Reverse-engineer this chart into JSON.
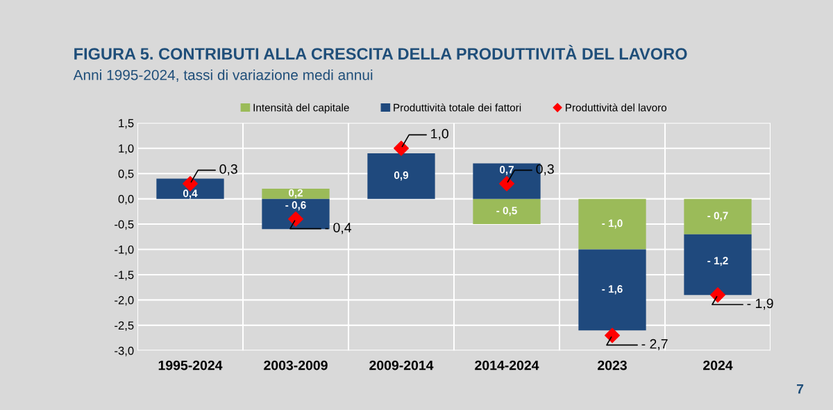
{
  "chart_data": {
    "type": "bar",
    "stacked": true,
    "title": "FIGURA 5. CONTRIBUTI ALLA CRESCITA DELLA PRODUTTIVITÀ DEL LAVORO",
    "subtitle": "Anni 1995-2024, tassi di variazione medi annui",
    "categories": [
      "1995-2024",
      "2003-2009",
      "2009-2014",
      "2014-2024",
      "2023",
      "2024"
    ],
    "series": [
      {
        "name": "Intensità del capitale",
        "color": "#9bbb59",
        "values": [
          null,
          0.2,
          null,
          -0.5,
          -1.0,
          -0.7
        ],
        "value_labels": [
          null,
          "0,2",
          null,
          "- 0,5",
          "- 1,0",
          "- 0,7"
        ]
      },
      {
        "name": "Produttività totale dei fattori",
        "color": "#1f497d",
        "values": [
          0.4,
          -0.6,
          0.9,
          0.7,
          -1.6,
          -1.2
        ],
        "value_labels": [
          "0,4",
          "- 0,6",
          "0,9",
          "0,7",
          "- 1,6",
          "- 1,2"
        ]
      },
      {
        "name": "Produttività del lavoro",
        "type": "scatter",
        "marker": "diamond",
        "color": "#ff0000",
        "values": [
          0.3,
          -0.4,
          1.0,
          0.3,
          -2.7,
          -1.9
        ],
        "value_labels": [
          "0,3",
          "- 0,4",
          "1,0",
          "0,3",
          "- 2,7",
          "- 1,9"
        ]
      }
    ],
    "ylim": [
      -3.0,
      1.5
    ],
    "yticks": [
      {
        "value": -3.0,
        "label": "-3,0"
      },
      {
        "value": -2.5,
        "label": "-2,5"
      },
      {
        "value": -2.0,
        "label": "-2,0"
      },
      {
        "value": -1.5,
        "label": "-1,5"
      },
      {
        "value": -1.0,
        "label": "-1,0"
      },
      {
        "value": -0.5,
        "label": "-0,5"
      },
      {
        "value": 0.0,
        "label": "0,0"
      },
      {
        "value": 0.5,
        "label": "0,5"
      },
      {
        "value": 1.0,
        "label": "1,0"
      },
      {
        "value": 1.5,
        "label": "1,5"
      }
    ],
    "grid": true,
    "legend": "top",
    "annotations": [
      "7"
    ]
  }
}
